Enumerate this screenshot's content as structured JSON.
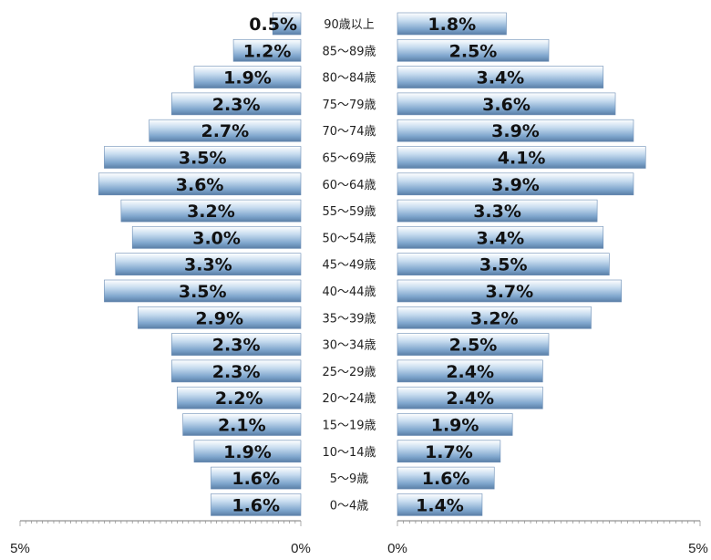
{
  "chart_data": {
    "type": "bar",
    "orientation": "horizontal",
    "layout": "population-pyramid",
    "categories": [
      "90歳以上",
      "85～89歳",
      "80～84歳",
      "75～79歳",
      "70～74歳",
      "65～69歳",
      "60～64歳",
      "55～59歳",
      "50～54歳",
      "45～49歳",
      "40～44歳",
      "35～39歳",
      "30～34歳",
      "25～29歳",
      "20～24歳",
      "15～19歳",
      "10～14歳",
      "5～9歳",
      "0～4歳"
    ],
    "series": [
      {
        "side": "left",
        "values": [
          0.5,
          1.2,
          1.9,
          2.3,
          2.7,
          3.5,
          3.6,
          3.2,
          3.0,
          3.3,
          3.5,
          2.9,
          2.3,
          2.3,
          2.2,
          2.1,
          1.9,
          1.6,
          1.6
        ],
        "labels": [
          "0.5%",
          "1.2%",
          "1.9%",
          "2.3%",
          "2.7%",
          "3.5%",
          "3.6%",
          "3.2%",
          "3.0%",
          "3.3%",
          "3.5%",
          "2.9%",
          "2.3%",
          "2.3%",
          "2.2%",
          "2.1%",
          "1.9%",
          "1.6%",
          "1.6%"
        ]
      },
      {
        "side": "right",
        "values": [
          1.8,
          2.5,
          3.4,
          3.6,
          3.9,
          4.1,
          3.9,
          3.3,
          3.4,
          3.5,
          3.7,
          3.2,
          2.5,
          2.4,
          2.4,
          1.9,
          1.7,
          1.6,
          1.4
        ],
        "labels": [
          "1.8%",
          "2.5%",
          "3.4%",
          "3.6%",
          "3.9%",
          "4.1%",
          "3.9%",
          "3.3%",
          "3.4%",
          "3.5%",
          "3.7%",
          "3.2%",
          "2.5%",
          "2.4%",
          "2.4%",
          "1.9%",
          "1.7%",
          "1.6%",
          "1.4%"
        ]
      }
    ],
    "xlim": [
      0,
      5
    ],
    "tick_labels": {
      "left": [
        "5%",
        "0%"
      ],
      "right": [
        "0%",
        "5%"
      ]
    },
    "grid": false,
    "legend": "none"
  }
}
